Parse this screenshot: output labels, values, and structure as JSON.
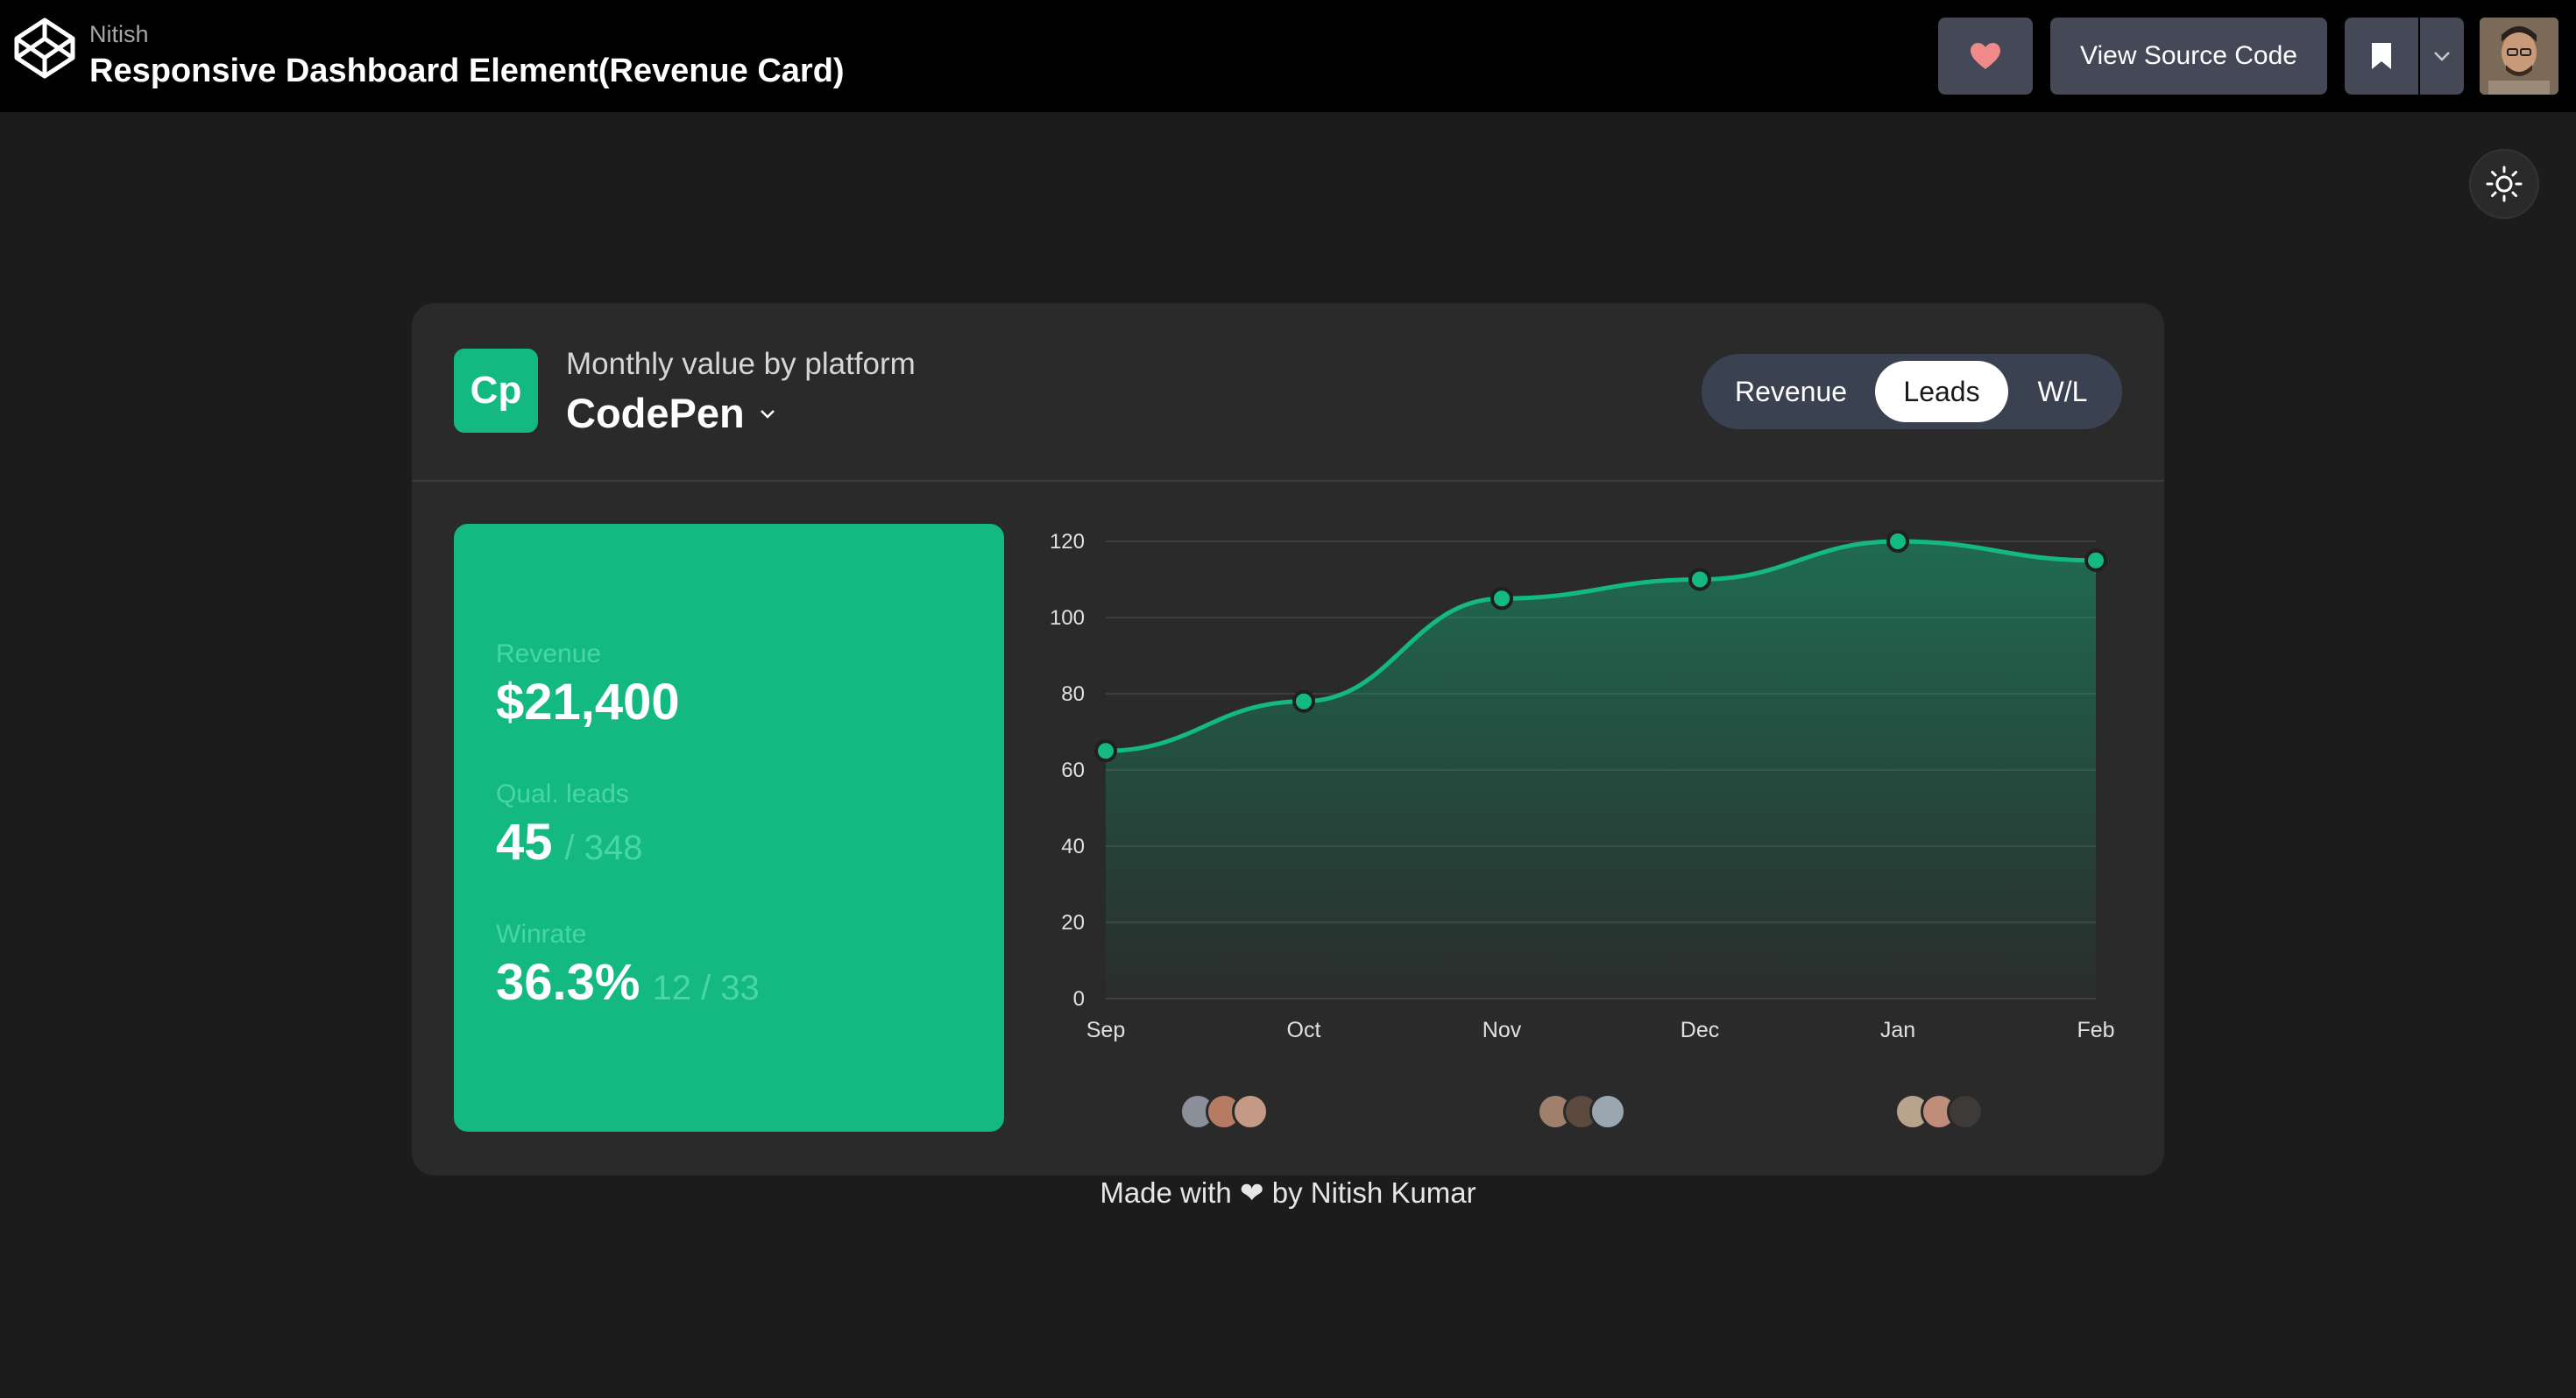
{
  "topbar": {
    "author": "Nitish",
    "title": "Responsive Dashboard Element(Revenue Card)",
    "source_button": "View Source Code"
  },
  "card": {
    "subtitle": "Monthly value by platform",
    "platform_logo": "Cp",
    "platform_name": "CodePen",
    "tabs": [
      {
        "label": "Revenue",
        "active": false
      },
      {
        "label": "Leads",
        "active": true
      },
      {
        "label": "W/L",
        "active": false
      }
    ],
    "stats": {
      "revenue_label": "Revenue",
      "revenue_value": "$21,400",
      "leads_label": "Qual. leads",
      "leads_value": "45",
      "leads_sub": "/ 348",
      "winrate_label": "Winrate",
      "winrate_value": "36.3%",
      "winrate_sub": "12 / 33"
    }
  },
  "chart_data": {
    "type": "area",
    "categories": [
      "Sep",
      "Oct",
      "Nov",
      "Dec",
      "Jan",
      "Feb"
    ],
    "values": [
      65,
      78,
      105,
      110,
      120,
      115
    ],
    "ylim": [
      0,
      120
    ],
    "yticks": [
      0,
      20,
      40,
      60,
      80,
      100,
      120
    ],
    "grid": true,
    "color": "#13b981"
  },
  "avatar_groups": [
    {
      "colors": [
        "#8a8f99",
        "#b77a63",
        "#c49a86"
      ]
    },
    {
      "colors": [
        "#a0806c",
        "#5c4a3f",
        "#9aa7b0"
      ]
    },
    {
      "colors": [
        "#b8a48c",
        "#c08d7b",
        "#3d3a38"
      ]
    }
  ],
  "footer": {
    "text": "Made with ❤ by Nitish Kumar"
  }
}
